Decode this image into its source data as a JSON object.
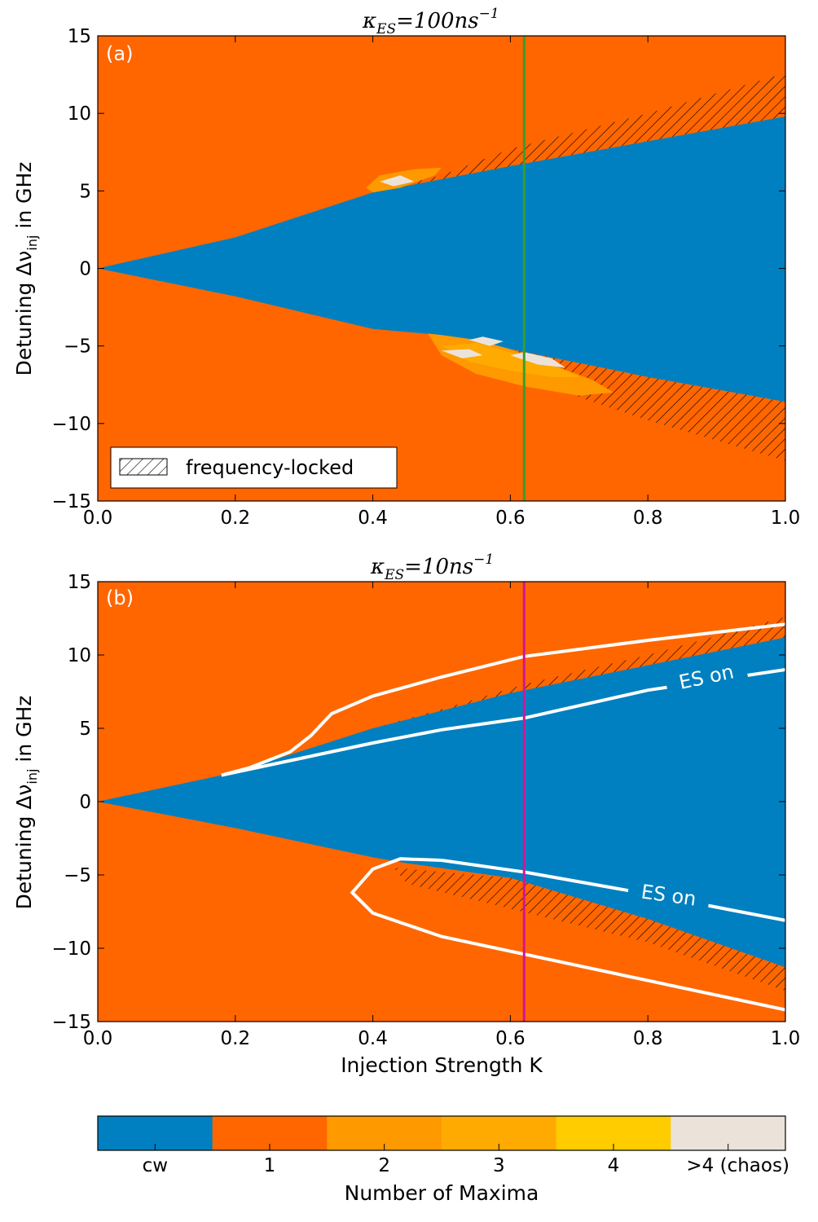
{
  "colors": {
    "cw": "#0080c0",
    "max1": "#ff6600",
    "max2": "#ff9900",
    "max3": "#ffaa00",
    "max4": "#ffcc00",
    "chaos": "#ebe3da",
    "line_a": "#33a02c",
    "line_b": "#d4149a",
    "contour": "#ffffff",
    "hatch": "#000000"
  },
  "panel_a": {
    "tag": "(a)",
    "title_main": "κ",
    "title_sub": "ES",
    "title_rest": "=100ns",
    "title_exp": "−1",
    "legend_label": "frequency-locked"
  },
  "panel_b": {
    "tag": "(b)",
    "title_main": "κ",
    "title_sub": "ES",
    "title_rest": "=10ns",
    "title_exp": "−1",
    "es_label_upper": "ES on",
    "es_label_lower": "ES on"
  },
  "axes": {
    "ylabel_a": "Detuning Δν",
    "ylabel_a_sub": "inj",
    "ylabel_a_rest": " in GHz",
    "ylabel_b": "Detuning Δν",
    "ylabel_b_sub": "inj",
    "ylabel_b_rest": " in GHz",
    "xlabel_b": "Injection Strength K"
  },
  "colorbar": {
    "label": "Number of Maxima",
    "ticks": [
      "cw",
      "1",
      "2",
      "3",
      "4",
      ">4 (chaos)"
    ]
  },
  "chart_data": [
    {
      "type": "heatmap",
      "panel": "a",
      "title": "κ_ES = 100ns^-1",
      "xlabel": "",
      "ylabel": "Detuning Δν_inj in GHz",
      "xlim": [
        0.0,
        1.0
      ],
      "ylim": [
        -15,
        15
      ],
      "xticks": [
        "0.0",
        "0.2",
        "0.4",
        "0.6",
        "0.8",
        "1.0"
      ],
      "yticks": [
        "−15",
        "−10",
        "−5",
        "0",
        "5",
        "10",
        "15"
      ],
      "background_region": "1",
      "cw_region": {
        "upper_boundary": [
          [
            0.0,
            0.0
          ],
          [
            0.2,
            2.0
          ],
          [
            0.4,
            4.9
          ],
          [
            0.6,
            6.6
          ],
          [
            0.8,
            8.2
          ],
          [
            1.0,
            9.8
          ]
        ],
        "lower_boundary": [
          [
            0.0,
            0.0
          ],
          [
            0.2,
            -1.8
          ],
          [
            0.4,
            -3.9
          ],
          [
            0.5,
            -4.3
          ],
          [
            0.6,
            -5.2
          ],
          [
            0.8,
            -7.0
          ],
          [
            1.0,
            -8.6
          ]
        ]
      },
      "frequency_locked_hatch": {
        "upper": [
          [
            0.4,
            5.0
          ],
          [
            0.5,
            6.0
          ],
          [
            0.6,
            7.7
          ],
          [
            0.8,
            10.0
          ],
          [
            1.0,
            12.6
          ],
          [
            1.0,
            9.8
          ],
          [
            0.8,
            8.2
          ],
          [
            0.6,
            6.6
          ],
          [
            0.4,
            4.9
          ]
        ],
        "lower": [
          [
            0.55,
            -4.6
          ],
          [
            0.6,
            -5.2
          ],
          [
            0.8,
            -7.0
          ],
          [
            1.0,
            -8.6
          ],
          [
            1.0,
            -12.4
          ],
          [
            0.8,
            -9.8
          ],
          [
            0.7,
            -8.3
          ],
          [
            0.6,
            -6.5
          ]
        ]
      },
      "vertical_line": {
        "x": 0.62,
        "color": "line_a"
      },
      "legend": {
        "entries": [
          "frequency-locked"
        ],
        "placement": "lower-left"
      }
    },
    {
      "type": "heatmap",
      "panel": "b",
      "title": "κ_ES = 10ns^-1",
      "xlabel": "Injection Strength K",
      "ylabel": "Detuning Δν_inj in GHz",
      "xlim": [
        0.0,
        1.0
      ],
      "ylim": [
        -15,
        15
      ],
      "xticks": [
        "0.0",
        "0.2",
        "0.4",
        "0.6",
        "0.8",
        "1.0"
      ],
      "yticks": [
        "−15",
        "−10",
        "−5",
        "0",
        "5",
        "10",
        "15"
      ],
      "background_region": "1",
      "cw_region": {
        "upper_boundary": [
          [
            0.0,
            0.0
          ],
          [
            0.2,
            2.0
          ],
          [
            0.4,
            5.0
          ],
          [
            0.6,
            7.4
          ],
          [
            0.8,
            9.3
          ],
          [
            1.0,
            11.2
          ]
        ],
        "lower_boundary": [
          [
            0.0,
            0.0
          ],
          [
            0.2,
            -1.8
          ],
          [
            0.4,
            -3.8
          ],
          [
            0.45,
            -4.2
          ],
          [
            0.6,
            -5.2
          ],
          [
            0.8,
            -8.0
          ],
          [
            1.0,
            -11.3
          ]
        ]
      },
      "es_contour_upper_outer": [
        [
          0.18,
          1.8
        ],
        [
          0.22,
          2.3
        ],
        [
          0.28,
          3.4
        ],
        [
          0.31,
          4.5
        ],
        [
          0.34,
          6.0
        ],
        [
          0.4,
          7.2
        ],
        [
          0.5,
          8.5
        ],
        [
          0.62,
          9.9
        ],
        [
          0.8,
          11.0
        ],
        [
          1.0,
          12.1
        ]
      ],
      "es_contour_upper_inner": [
        [
          0.18,
          1.8
        ],
        [
          0.3,
          3.0
        ],
        [
          0.4,
          4.0
        ],
        [
          0.5,
          4.9
        ],
        [
          0.62,
          5.7
        ],
        [
          0.8,
          7.6
        ],
        [
          1.0,
          9.0
        ]
      ],
      "es_contour_lower": [
        [
          0.5,
          -4.0
        ],
        [
          0.44,
          -3.9
        ],
        [
          0.4,
          -4.6
        ],
        [
          0.37,
          -6.2
        ],
        [
          0.4,
          -7.6
        ],
        [
          0.5,
          -9.2
        ],
        [
          0.62,
          -10.4
        ],
        [
          0.8,
          -12.2
        ],
        [
          1.0,
          -14.2
        ]
      ],
      "es_contour_lower_inner": [
        [
          0.5,
          -4.0
        ],
        [
          0.62,
          -4.8
        ],
        [
          0.8,
          -6.3
        ],
        [
          1.0,
          -8.1
        ]
      ],
      "annotations": [
        "ES on",
        "ES on"
      ],
      "vertical_line": {
        "x": 0.62,
        "color": "line_b"
      }
    }
  ]
}
